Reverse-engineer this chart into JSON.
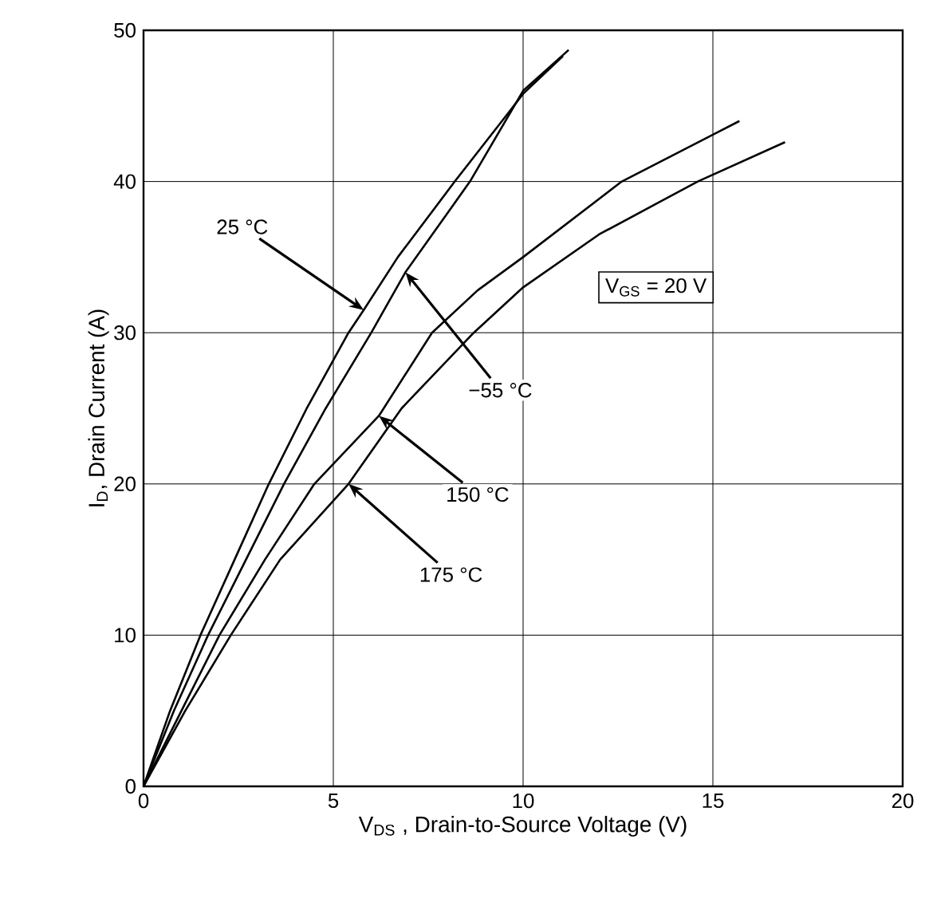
{
  "chart_data": {
    "type": "line",
    "xlabel": "V$_{DS}$ , Drain-to-Source Voltage (V)",
    "ylabel": "I$_{D}$, Drain Current (A)",
    "xlim": [
      0,
      20
    ],
    "xticks": [
      0,
      5,
      10,
      15,
      20
    ],
    "ylim": [
      0,
      50
    ],
    "yticks": [
      0,
      10,
      20,
      30,
      40,
      50
    ],
    "grid": true,
    "marker": "none",
    "line_style": "solid",
    "series": [
      {
        "color": "#000000",
        "x": [
          0,
          0.7,
          1.5,
          2.4,
          3.3,
          4.3,
          5.4,
          5.8,
          6.7,
          8.2,
          9.6,
          10,
          11.05
        ],
        "values": [
          0,
          5,
          10,
          15,
          20,
          25,
          30,
          31.5,
          35,
          40,
          44.5,
          45.8,
          48.3
        ]
      },
      {
        "color": "#000000",
        "x": [
          0,
          0.8,
          1.7,
          2.7,
          3.7,
          4.8,
          6.0,
          6.9,
          8.6,
          10,
          11.2
        ],
        "values": [
          0,
          5,
          10,
          15,
          20,
          25,
          30,
          34,
          40,
          46.0,
          48.7
        ]
      },
      {
        "color": "#000000",
        "x": [
          0,
          1.0,
          2.0,
          3.2,
          4.5,
          6.2,
          7.6,
          8.8,
          10,
          12.6,
          15,
          15.7
        ],
        "values": [
          0,
          5,
          10,
          15,
          20,
          24.5,
          30,
          32.8,
          35,
          40,
          43.1,
          44.0
        ]
      },
      {
        "color": "#000000",
        "x": [
          0,
          1.1,
          2.3,
          3.6,
          5.4,
          6.8,
          8.7,
          10,
          12,
          14.6,
          16.9
        ],
        "values": [
          0,
          5,
          10,
          15,
          20,
          25,
          30,
          33,
          36.5,
          40,
          42.6
        ]
      }
    ],
    "annotations": [
      {
        "text": "25 °C",
        "x": 5.8,
        "y": 31.5
      },
      {
        "text": "−55 °C",
        "x": 6.9,
        "y": 34
      },
      {
        "text": "150 °C",
        "x": 6.2,
        "y": 24.5
      },
      {
        "text": "175 °C",
        "x": 5.4,
        "y": 20
      },
      "V$_{GS}$ = 20 V"
    ]
  }
}
